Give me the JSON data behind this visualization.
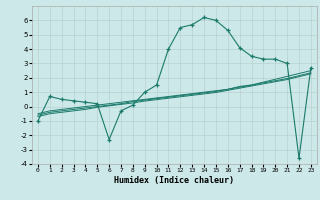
{
  "background_color": "#cce8e8",
  "grid_color": "#b8d0d0",
  "line_color": "#1a7a6a",
  "x_data": [
    0,
    1,
    2,
    3,
    4,
    5,
    6,
    7,
    8,
    9,
    10,
    11,
    12,
    13,
    14,
    15,
    16,
    17,
    18,
    19,
    20,
    21,
    22,
    23
  ],
  "y_main": [
    -1.0,
    0.7,
    0.5,
    0.4,
    0.3,
    0.2,
    -2.3,
    -0.3,
    0.1,
    1.0,
    1.5,
    4.0,
    5.5,
    5.7,
    6.2,
    6.0,
    5.3,
    4.1,
    3.5,
    3.3,
    3.3,
    3.0,
    -3.6,
    2.7
  ],
  "y_line1": [
    -0.5,
    -0.3,
    -0.2,
    -0.1,
    0.0,
    0.1,
    0.2,
    0.3,
    0.4,
    0.5,
    0.6,
    0.7,
    0.8,
    0.9,
    1.0,
    1.1,
    1.2,
    1.4,
    1.5,
    1.7,
    1.9,
    2.1,
    2.3,
    2.5
  ],
  "y_line2": [
    -0.6,
    -0.4,
    -0.3,
    -0.2,
    -0.1,
    0.0,
    0.1,
    0.2,
    0.35,
    0.45,
    0.55,
    0.65,
    0.75,
    0.85,
    0.95,
    1.05,
    1.2,
    1.35,
    1.5,
    1.65,
    1.8,
    1.95,
    2.15,
    2.35
  ],
  "y_line3": [
    -0.7,
    -0.5,
    -0.4,
    -0.3,
    -0.2,
    -0.05,
    0.05,
    0.15,
    0.25,
    0.38,
    0.48,
    0.58,
    0.68,
    0.78,
    0.88,
    0.98,
    1.13,
    1.28,
    1.43,
    1.58,
    1.73,
    1.88,
    2.08,
    2.28
  ],
  "xlabel": "Humidex (Indice chaleur)",
  "ylim": [
    -4,
    7
  ],
  "xlim": [
    -0.5,
    23.5
  ],
  "yticks": [
    -4,
    -3,
    -2,
    -1,
    0,
    1,
    2,
    3,
    4,
    5,
    6
  ],
  "xticks": [
    0,
    1,
    2,
    3,
    4,
    5,
    6,
    7,
    8,
    9,
    10,
    11,
    12,
    13,
    14,
    15,
    16,
    17,
    18,
    19,
    20,
    21,
    22,
    23
  ]
}
